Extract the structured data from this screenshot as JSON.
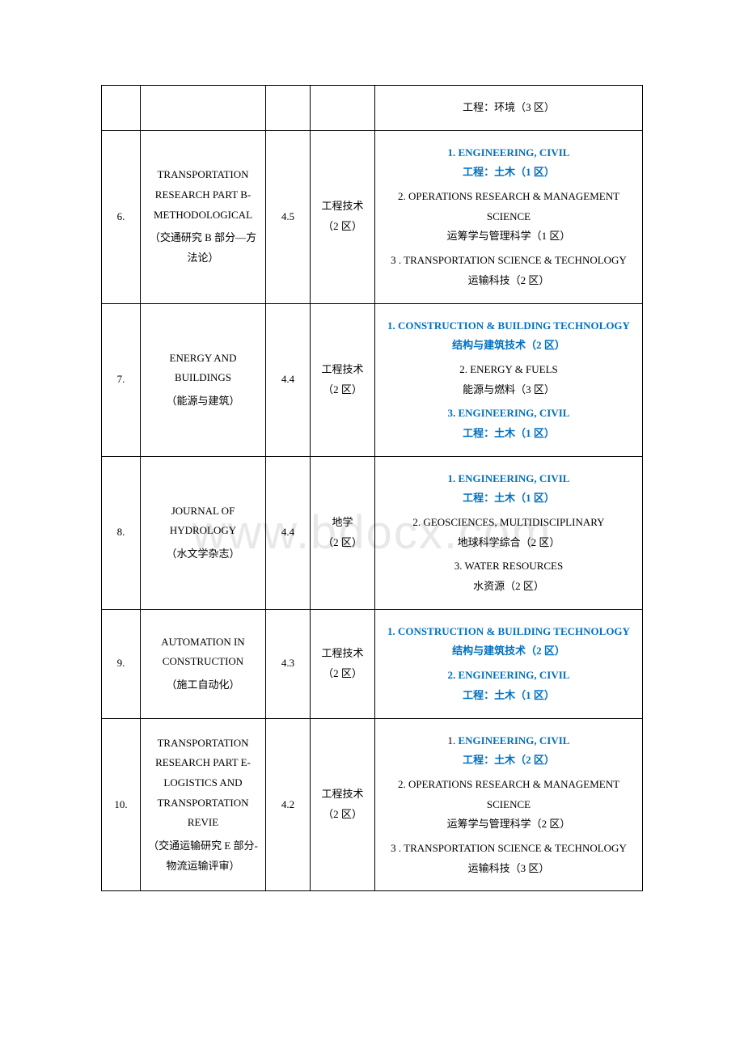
{
  "watermark": "www.bdocx.com",
  "colors": {
    "highlight": "#0070c0",
    "text": "#000000",
    "border": "#000000",
    "watermark": "#e8e8e8",
    "background": "#ffffff"
  },
  "fonts": {
    "serif_en": "Times New Roman",
    "serif_cn": "SimSun",
    "cell_fontsize": 13,
    "watermark_fontsize": 58
  },
  "columns": {
    "num_width": 48,
    "title_width": 155,
    "if_width": 55,
    "cat_width": 80
  },
  "rows": [
    {
      "num": "",
      "title_en": "",
      "title_cn": "",
      "impact_factor": "",
      "category": "",
      "fields": [
        {
          "en": "",
          "cn": "工程：环境（3 区）",
          "highlighted": false
        }
      ],
      "is_continuation": true
    },
    {
      "num": "6.",
      "title_en": "TRANSPORTATION RESEARCH PART B-METHODOLOGICAL",
      "title_cn": "（交通研究 B 部分—方法论）",
      "impact_factor": "4.5",
      "category": "工程技术（2 区）",
      "fields": [
        {
          "en": "1. ENGINEERING, CIVIL",
          "cn": "工程：土木（1 区）",
          "highlighted": true
        },
        {
          "en": "2. OPERATIONS RESEARCH & MANAGEMENT SCIENCE",
          "cn": "运筹学与管理科学（1 区）",
          "highlighted": false
        },
        {
          "en": "3 . TRANSPORTATION SCIENCE & TECHNOLOGY",
          "cn": "运输科技（2 区）",
          "highlighted": false
        }
      ]
    },
    {
      "num": "7.",
      "title_en": "ENERGY AND BUILDINGS",
      "title_cn": "（能源与建筑）",
      "impact_factor": "4.4",
      "category": "工程技术（2 区）",
      "fields": [
        {
          "en": "1. CONSTRUCTION & BUILDING TECHNOLOGY",
          "cn": "结构与建筑技术（2 区）",
          "highlighted": true
        },
        {
          "en": "2. ENERGY & FUELS",
          "cn": "能源与燃料（3 区）",
          "highlighted": false
        },
        {
          "en": "3. ENGINEERING, CIVIL",
          "cn": "工程：土木（1 区）",
          "highlighted": true
        }
      ]
    },
    {
      "num": "8.",
      "title_en": "JOURNAL OF HYDROLOGY",
      "title_cn": "（水文学杂志）",
      "impact_factor": "4.4",
      "category": "地学\n（2 区）",
      "fields": [
        {
          "en": "1. ENGINEERING, CIVIL",
          "cn": "工程：土木（1 区）",
          "highlighted": true
        },
        {
          "en": "2. GEOSCIENCES, MULTIDISCIPLINARY",
          "cn": "地球科学综合（2 区）",
          "highlighted": false
        },
        {
          "en": "3. WATER RESOURCES",
          "cn": "水资源（2 区）",
          "highlighted": false
        }
      ]
    },
    {
      "num": "9.",
      "title_en": "AUTOMATION IN CONSTRUCTION",
      "title_cn": "（施工自动化）",
      "impact_factor": "4.3",
      "category": "工程技术（2 区）",
      "fields": [
        {
          "en": "1. CONSTRUCTION & BUILDING TECHNOLOGY",
          "cn": "结构与建筑技术（2 区）",
          "highlighted": true
        },
        {
          "en": "2. ENGINEERING, CIVIL",
          "cn": "工程：土木（1 区）",
          "highlighted": true
        }
      ]
    },
    {
      "num": "10.",
      "title_en": "TRANSPORTATION RESEARCH PART E-LOGISTICS AND TRANSPORTATION REVIE",
      "title_cn": "（交通运输研究 E 部分-物流运输评审）",
      "impact_factor": "4.2",
      "category": "工程技术（2 区）",
      "fields": [
        {
          "en_prefix": "1. ",
          "en_highlight": "ENGINEERING, CIVIL",
          "cn": "工程：土木（2 区）",
          "highlighted": "partial",
          "cn_highlighted": true
        },
        {
          "en": "2. OPERATIONS RESEARCH & MANAGEMENT SCIENCE",
          "cn": "运筹学与管理科学（2 区）",
          "highlighted": false
        },
        {
          "en": "3 . TRANSPORTATION SCIENCE & TECHNOLOGY",
          "cn": "运输科技（3 区）",
          "highlighted": false
        }
      ]
    }
  ]
}
